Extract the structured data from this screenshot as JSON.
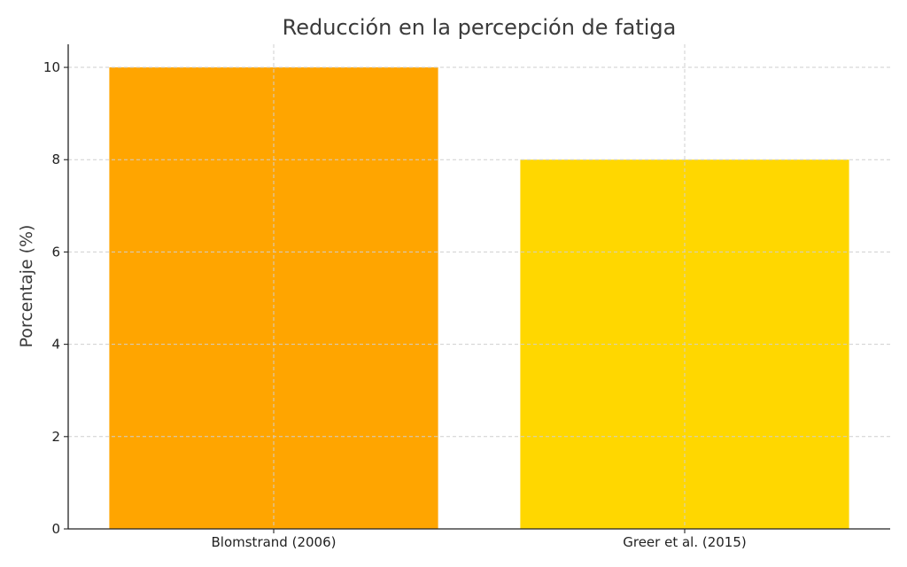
{
  "chart_data": {
    "type": "bar",
    "title": "Reducción en la percepción de fatiga",
    "xlabel": "",
    "ylabel": "Porcentaje (%)",
    "categories": [
      "Blomstrand (2006)",
      "Greer et al. (2015)"
    ],
    "values": [
      10,
      8
    ],
    "colors": [
      "#ffa500",
      "#ffd700"
    ],
    "ylim": [
      0,
      10.5
    ],
    "yticks": [
      0,
      2,
      4,
      6,
      8,
      10
    ],
    "grid": true,
    "legend": "none"
  }
}
